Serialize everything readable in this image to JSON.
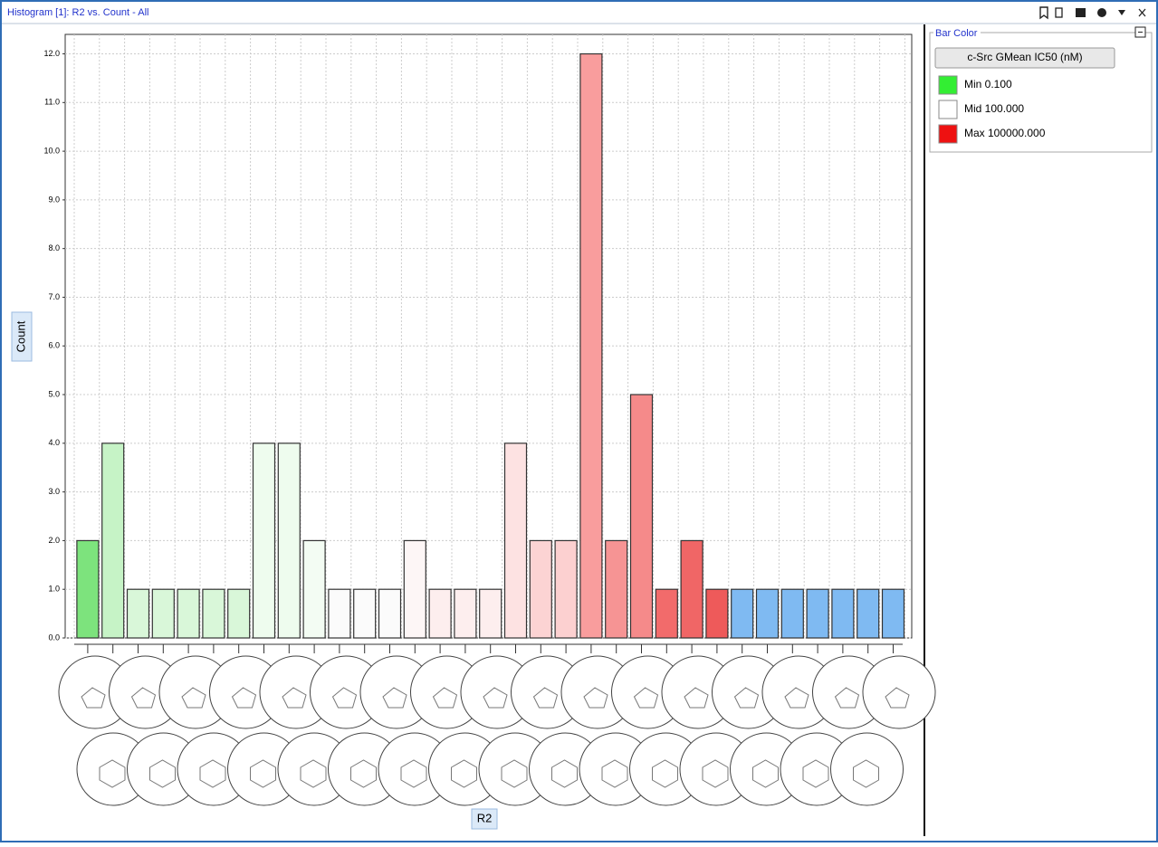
{
  "window": {
    "title": "Histogram [1]: R2 vs. Count - All"
  },
  "chart_data": {
    "type": "bar",
    "x_label": "R2",
    "y_label": "Count",
    "categories": [
      null,
      null,
      null,
      null,
      null,
      null,
      null,
      null,
      null,
      null,
      null,
      null,
      null,
      null,
      null,
      null,
      null,
      null,
      null,
      null,
      null,
      null,
      null,
      null,
      null,
      null,
      null,
      null,
      null,
      null,
      null,
      null,
      null
    ],
    "values": [
      2,
      4,
      1,
      1,
      1,
      1,
      1,
      4,
      4,
      2,
      1,
      1,
      1,
      2,
      1,
      1,
      1,
      4,
      2,
      2,
      12,
      2,
      5,
      1,
      2,
      1,
      1,
      1,
      1,
      1,
      1,
      1,
      1
    ],
    "colors": [
      "#7de37d",
      "#c6f3c6",
      "#d9f7d9",
      "#d9f7d9",
      "#d9f7d9",
      "#d9f7d9",
      "#d9f7d9",
      "#eefcee",
      "#eefcee",
      "#f3fcf3",
      "#fbfbfb",
      "#fbfbfb",
      "#fbfbfb",
      "#fdf6f6",
      "#fdeeee",
      "#fdeeee",
      "#fdeeee",
      "#fde2e2",
      "#fcd3d3",
      "#fcd0d0",
      "#f99d9d",
      "#f69494",
      "#f58a8a",
      "#f26b6b",
      "#f06666",
      "#ee5a5a",
      "#7fbaf2",
      "#7fbaf2",
      "#7fbaf2",
      "#7fbaf2",
      "#7fbaf2",
      "#7fbaf2",
      "#7fbaf2"
    ],
    "ylim": [
      0,
      12.4
    ],
    "yticks": [
      {
        "value": 0,
        "label": "0.0"
      },
      {
        "value": 1,
        "label": "1.0"
      },
      {
        "value": 2,
        "label": "2.0"
      },
      {
        "value": 3,
        "label": "3.0"
      },
      {
        "value": 4,
        "label": "4.0"
      },
      {
        "value": 5,
        "label": "5.0"
      },
      {
        "value": 6,
        "label": "6.0"
      },
      {
        "value": 7,
        "label": "7.0"
      },
      {
        "value": 8,
        "label": "8.0"
      },
      {
        "value": 9,
        "label": "9.0"
      },
      {
        "value": 10,
        "label": "10.0"
      },
      {
        "value": 11,
        "label": "11.0"
      },
      {
        "value": 12,
        "label": "12.0"
      }
    ],
    "grid": true
  },
  "legend": {
    "title": "Bar Color",
    "button": "c-Src GMean IC50 (nM)",
    "items": [
      {
        "label": "Min 0.100",
        "color": "#33ee33"
      },
      {
        "label": "Mid 100.000",
        "color": "#ffffff"
      },
      {
        "label": "Max 100000.000",
        "color": "#ee1111"
      }
    ]
  }
}
